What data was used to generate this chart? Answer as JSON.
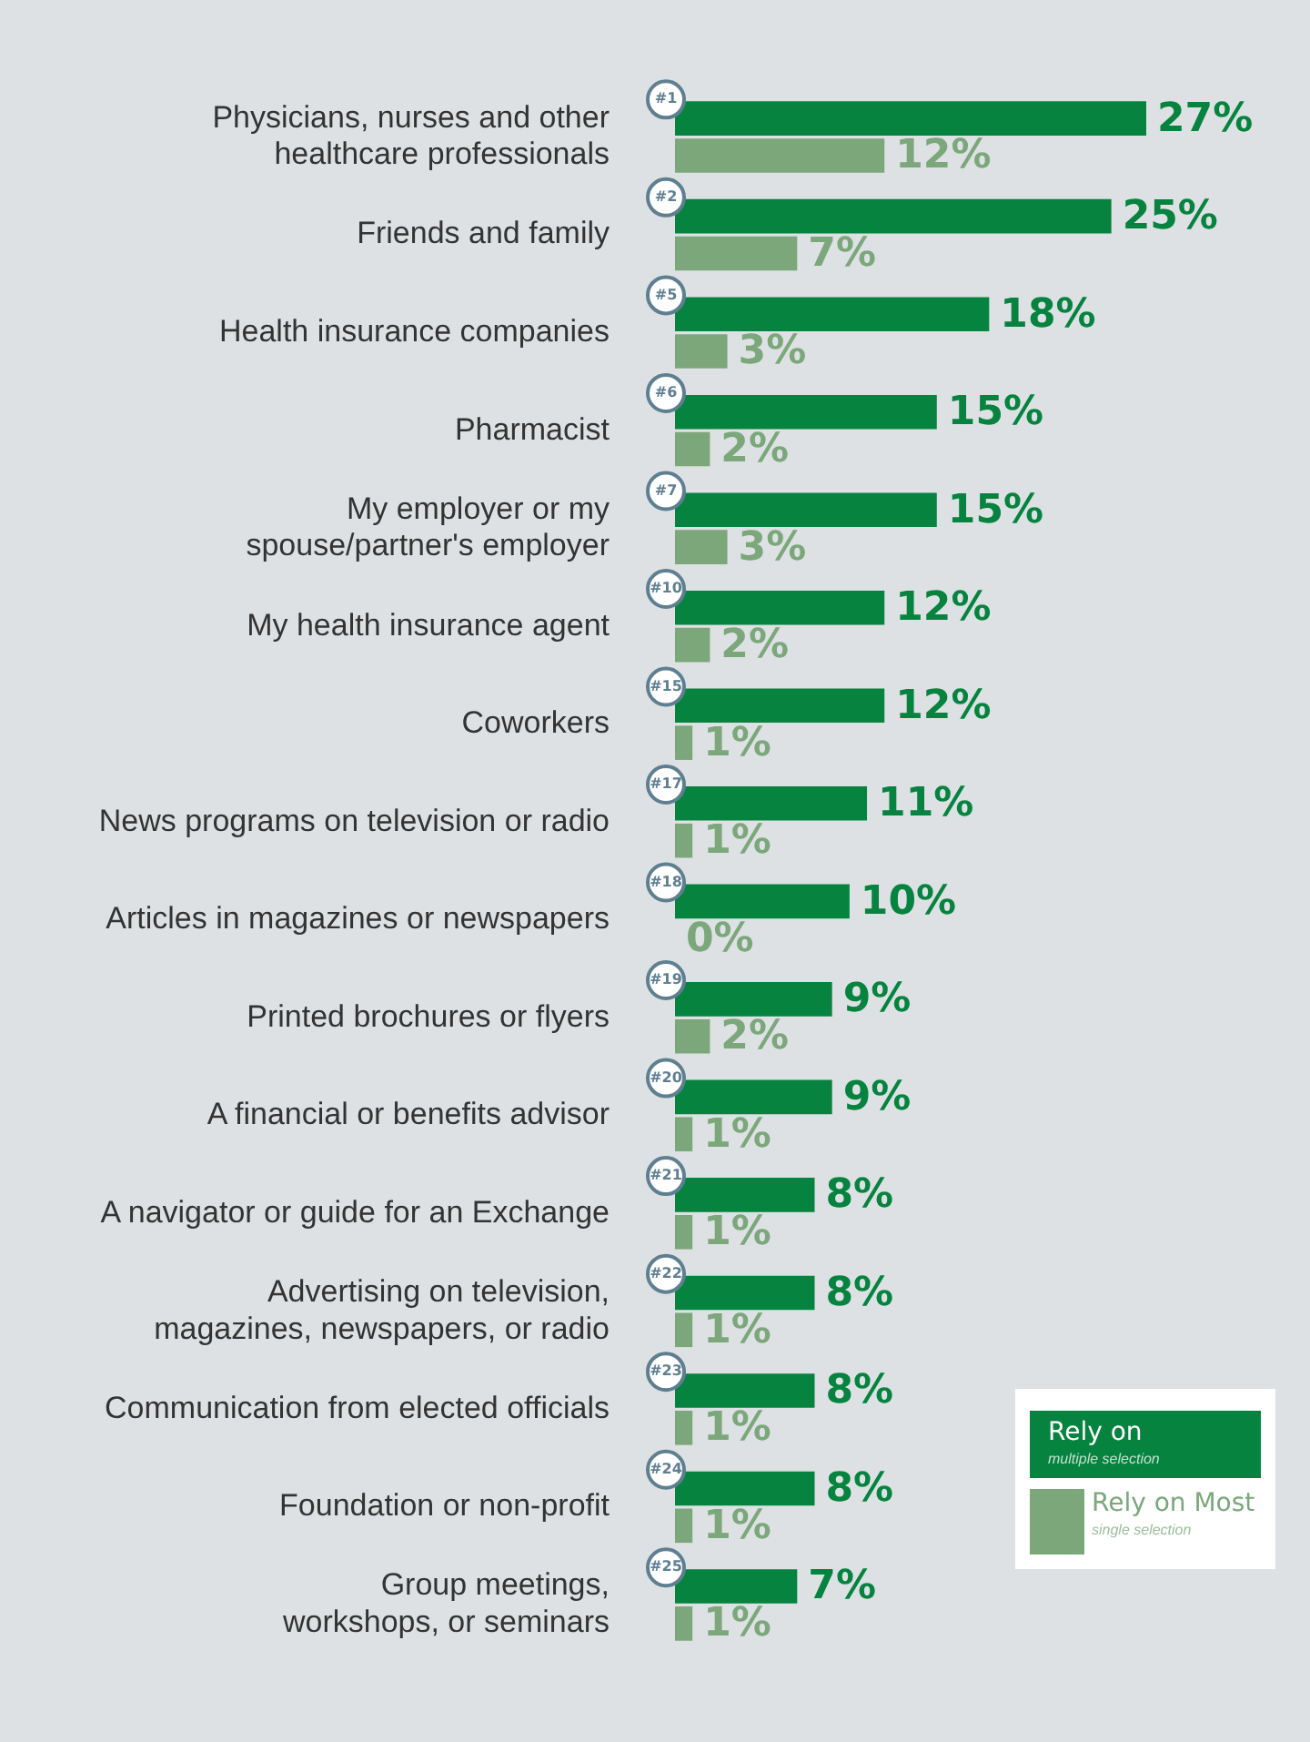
{
  "chart_data": {
    "type": "bar",
    "orientation": "horizontal",
    "tick_labels": "y",
    "legend": "bottom right",
    "categories": [
      "Physicians, nurses and other\nhealthcare professionals",
      "Friends and family",
      "Health insurance companies",
      "Pharmacist",
      "My employer or my\nspouse/partner's employer",
      "My health insurance agent",
      "Coworkers",
      "News programs on television or radio",
      "Articles in magazines or newspapers",
      "Printed brochures or flyers",
      "A financial or benefits advisor",
      "A navigator or guide for an Exchange",
      "Advertising on television,\nmagazines, newspapers, or radio",
      "Communication from elected officials",
      "Foundation or non-profit",
      "Group meetings,\nworkshops, or seminars"
    ],
    "series": [
      {
        "name": "Rely on",
        "color": "#06833f",
        "values": [
          27,
          25,
          18,
          15,
          15,
          12,
          12,
          11,
          10,
          9,
          9,
          8,
          8,
          8,
          8,
          7
        ],
        "value_labels": [
          "27%",
          "25%",
          "18%",
          "15%",
          "15%",
          "12%",
          "12%",
          "11%",
          "10%",
          "9%",
          "9%",
          "8%",
          "8%",
          "8%",
          "8%",
          "7%"
        ]
      },
      {
        "name": "Rely on Most",
        "color": "#7ba77b",
        "values": [
          12,
          7,
          3,
          2,
          3,
          2,
          1,
          1,
          0,
          2,
          1,
          1,
          1,
          1,
          1,
          1
        ],
        "value_labels": [
          "12%",
          "7%",
          "3%",
          "2%",
          "3%",
          "2%",
          "1%",
          "1%",
          "0%",
          "2%",
          "1%",
          "1%",
          "1%",
          "1%",
          "1%",
          "1%"
        ]
      }
    ],
    "annotations": [
      "multiple selection",
      "single selection",
      "#1",
      "#2",
      "#5",
      "#6",
      "#7",
      "#10",
      "#15",
      "#17",
      "#18",
      "#19",
      "#20",
      "#21",
      "#22",
      "#23",
      "#24",
      "#25"
    ]
  }
}
